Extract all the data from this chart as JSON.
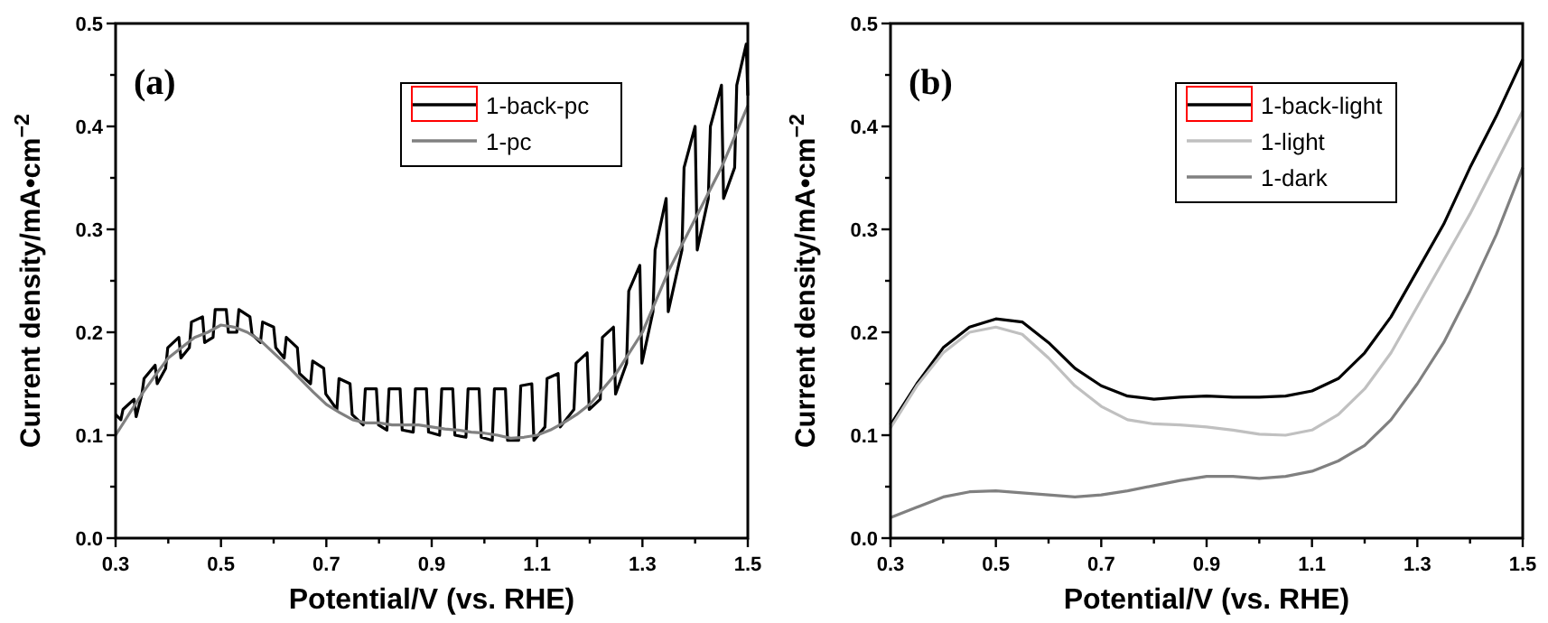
{
  "chart_data": [
    {
      "type": "line",
      "title": "(a)",
      "xlabel": "Potential/V (vs. RHE)",
      "ylabel": "Current density/mA•cm$^{−2}$",
      "xlim": [
        0.3,
        1.5
      ],
      "ylim": [
        0,
        0.5
      ],
      "xticks": [
        0.3,
        {
          "value": 0.4,
          "label": null
        },
        0.5,
        {
          "value": 0.6,
          "label": null
        },
        0.7,
        {
          "value": 0.8,
          "label": null
        },
        0.9,
        {
          "value": 1.0,
          "label": null
        },
        1.1,
        {
          "value": 1.2,
          "label": null
        },
        1.3,
        {
          "value": 1.4,
          "label": null
        },
        1.5
      ],
      "yticks": [
        {
          "value": 0,
          "label": "0.0"
        },
        {
          "value": 0.05,
          "label": null
        },
        0.1,
        {
          "value": 0.15,
          "label": null
        },
        0.2,
        {
          "value": 0.25,
          "label": null
        },
        0.3,
        {
          "value": 0.35,
          "label": null
        },
        0.4,
        {
          "value": 0.45,
          "label": null
        },
        0.5
      ],
      "legend": "top right",
      "series": [
        {
          "name": "1-back-pc",
          "color": "#000000",
          "x": [
            0.3,
            0.31,
            0.314,
            0.335,
            0.339,
            0.35,
            0.354,
            0.375,
            0.379,
            0.395,
            0.399,
            0.42,
            0.424,
            0.44,
            0.444,
            0.465,
            0.469,
            0.485,
            0.489,
            0.51,
            0.514,
            0.53,
            0.534,
            0.555,
            0.559,
            0.575,
            0.579,
            0.6,
            0.604,
            0.62,
            0.624,
            0.645,
            0.649,
            0.67,
            0.674,
            0.695,
            0.699,
            0.72,
            0.724,
            0.745,
            0.749,
            0.77,
            0.774,
            0.795,
            0.799,
            0.815,
            0.819,
            0.84,
            0.844,
            0.865,
            0.869,
            0.89,
            0.894,
            0.915,
            0.919,
            0.94,
            0.944,
            0.965,
            0.969,
            0.99,
            0.994,
            1.015,
            1.019,
            1.04,
            1.044,
            1.065,
            1.069,
            1.09,
            1.094,
            1.115,
            1.119,
            1.14,
            1.144,
            1.17,
            1.174,
            1.195,
            1.199,
            1.22,
            1.224,
            1.245,
            1.249,
            1.27,
            1.274,
            1.295,
            1.299,
            1.32,
            1.324,
            1.345,
            1.349,
            1.375,
            1.379,
            1.4,
            1.404,
            1.425,
            1.429,
            1.45,
            1.454,
            1.475,
            1.479,
            1.497,
            1.5
          ],
          "values": [
            0.12,
            0.115,
            0.125,
            0.135,
            0.118,
            0.14,
            0.155,
            0.168,
            0.15,
            0.165,
            0.185,
            0.195,
            0.175,
            0.185,
            0.21,
            0.215,
            0.19,
            0.195,
            0.222,
            0.222,
            0.2,
            0.2,
            0.222,
            0.215,
            0.198,
            0.19,
            0.21,
            0.205,
            0.185,
            0.175,
            0.195,
            0.185,
            0.16,
            0.15,
            0.172,
            0.165,
            0.14,
            0.125,
            0.155,
            0.15,
            0.12,
            0.11,
            0.145,
            0.145,
            0.11,
            0.105,
            0.145,
            0.145,
            0.105,
            0.103,
            0.145,
            0.145,
            0.103,
            0.1,
            0.145,
            0.145,
            0.1,
            0.098,
            0.145,
            0.145,
            0.098,
            0.095,
            0.145,
            0.145,
            0.095,
            0.095,
            0.148,
            0.15,
            0.095,
            0.108,
            0.155,
            0.16,
            0.108,
            0.125,
            0.17,
            0.18,
            0.125,
            0.135,
            0.195,
            0.205,
            0.14,
            0.17,
            0.24,
            0.265,
            0.17,
            0.22,
            0.28,
            0.33,
            0.22,
            0.28,
            0.36,
            0.4,
            0.28,
            0.33,
            0.4,
            0.44,
            0.33,
            0.36,
            0.44,
            0.48,
            0.43
          ]
        },
        {
          "name": "1-pc",
          "color": "#808080",
          "x": [
            0.3,
            0.325,
            0.35,
            0.375,
            0.4,
            0.425,
            0.45,
            0.475,
            0.5,
            0.525,
            0.55,
            0.575,
            0.6,
            0.625,
            0.65,
            0.675,
            0.7,
            0.725,
            0.75,
            0.775,
            0.8,
            0.825,
            0.85,
            0.875,
            0.9,
            0.925,
            0.95,
            0.975,
            1.0,
            1.025,
            1.05,
            1.075,
            1.1,
            1.125,
            1.15,
            1.175,
            1.2,
            1.225,
            1.25,
            1.275,
            1.3,
            1.325,
            1.35,
            1.375,
            1.4,
            1.425,
            1.45,
            1.475,
            1.5
          ],
          "values": [
            0.1,
            0.12,
            0.14,
            0.158,
            0.175,
            0.185,
            0.195,
            0.2,
            0.207,
            0.205,
            0.2,
            0.192,
            0.18,
            0.168,
            0.155,
            0.142,
            0.13,
            0.122,
            0.115,
            0.112,
            0.112,
            0.11,
            0.11,
            0.11,
            0.108,
            0.106,
            0.105,
            0.103,
            0.102,
            0.1,
            0.097,
            0.098,
            0.1,
            0.105,
            0.112,
            0.12,
            0.13,
            0.145,
            0.16,
            0.18,
            0.2,
            0.23,
            0.26,
            0.285,
            0.31,
            0.335,
            0.36,
            0.39,
            0.42
          ]
        }
      ]
    },
    {
      "type": "line",
      "title": "(b)",
      "xlabel": "Potential/V (vs. RHE)",
      "ylabel": "Current density/mA•cm$^{−2}$",
      "xlim": [
        0.3,
        1.5
      ],
      "ylim": [
        0,
        0.5
      ],
      "xticks": [
        0.3,
        {
          "value": 0.4,
          "label": null
        },
        0.5,
        {
          "value": 0.6,
          "label": null
        },
        0.7,
        {
          "value": 0.8,
          "label": null
        },
        0.9,
        {
          "value": 1.0,
          "label": null
        },
        1.1,
        {
          "value": 1.2,
          "label": null
        },
        1.3,
        {
          "value": 1.4,
          "label": null
        },
        1.5
      ],
      "yticks": [
        {
          "value": 0,
          "label": "0.0"
        },
        {
          "value": 0.05,
          "label": null
        },
        0.1,
        {
          "value": 0.15,
          "label": null
        },
        0.2,
        {
          "value": 0.25,
          "label": null
        },
        0.3,
        {
          "value": 0.35,
          "label": null
        },
        0.4,
        {
          "value": 0.45,
          "label": null
        },
        0.5
      ],
      "legend": "top right",
      "x": [
        0.3,
        0.35,
        0.4,
        0.45,
        0.5,
        0.55,
        0.6,
        0.65,
        0.7,
        0.75,
        0.8,
        0.85,
        0.9,
        0.95,
        1.0,
        1.05,
        1.1,
        1.15,
        1.2,
        1.25,
        1.3,
        1.35,
        1.4,
        1.45,
        1.5
      ],
      "series": [
        {
          "name": "1-back-light",
          "color": "#000000",
          "values": [
            0.11,
            0.15,
            0.185,
            0.205,
            0.213,
            0.21,
            0.19,
            0.165,
            0.148,
            0.138,
            0.135,
            0.137,
            0.138,
            0.137,
            0.137,
            0.138,
            0.143,
            0.155,
            0.18,
            0.215,
            0.26,
            0.305,
            0.36,
            0.41,
            0.465
          ]
        },
        {
          "name": "1-light",
          "color": "#c0c0c0",
          "values": [
            0.107,
            0.148,
            0.18,
            0.2,
            0.205,
            0.198,
            0.175,
            0.148,
            0.128,
            0.115,
            0.111,
            0.11,
            0.108,
            0.105,
            0.101,
            0.1,
            0.105,
            0.12,
            0.145,
            0.18,
            0.225,
            0.27,
            0.315,
            0.365,
            0.415
          ]
        },
        {
          "name": "1-dark",
          "color": "#808080",
          "values": [
            0.02,
            0.03,
            0.04,
            0.045,
            0.046,
            0.044,
            0.042,
            0.04,
            0.042,
            0.046,
            0.051,
            0.056,
            0.06,
            0.06,
            0.058,
            0.06,
            0.065,
            0.075,
            0.09,
            0.115,
            0.15,
            0.19,
            0.24,
            0.295,
            0.36
          ]
        }
      ]
    }
  ]
}
